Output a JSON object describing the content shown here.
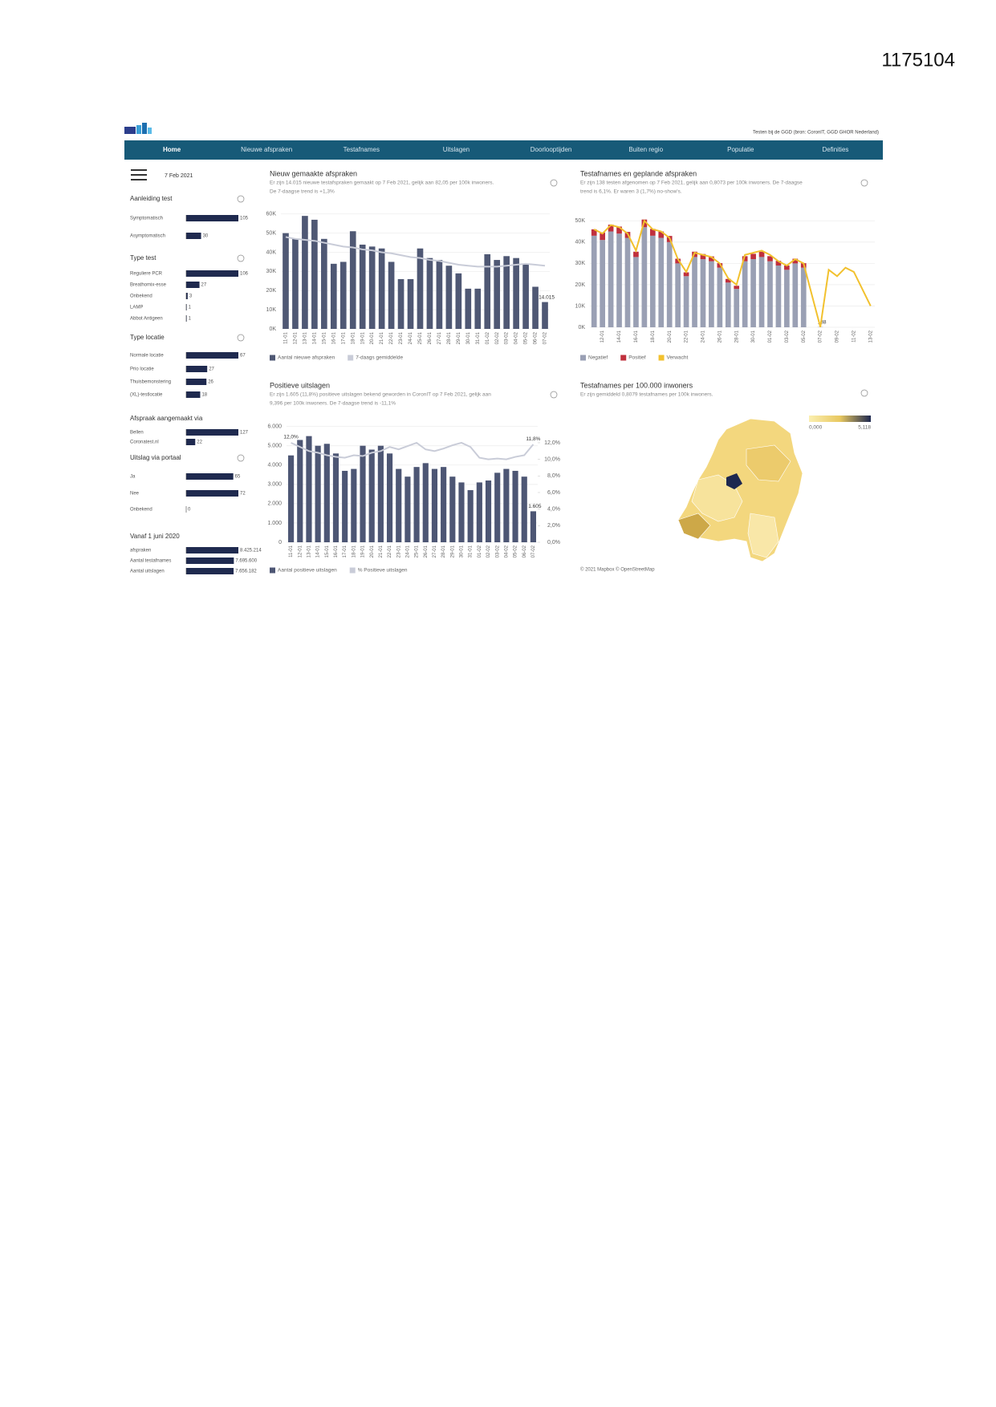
{
  "doc_id": "1175104",
  "header": {
    "source": "Testen bij de GGD (bron: CoronIT, GGD GHOR Nederland)"
  },
  "nav": [
    "Home",
    "Nieuwe afspraken",
    "Testafnames",
    "Uitslagen",
    "Doorlooptijden",
    "Buiten regio",
    "Populatie",
    "Definities"
  ],
  "sidebar": {
    "date": "7 Feb 2021",
    "groups": [
      {
        "title": "Aanleiding test",
        "items": [
          {
            "label": "Symptomatisch",
            "value": 105
          },
          {
            "label": "Asymptomatisch",
            "value": 30
          }
        ]
      },
      {
        "title": "Type test",
        "items": [
          {
            "label": "Reguliere PCR",
            "value": 106
          },
          {
            "label": "Breathomix-esse",
            "value": 27
          },
          {
            "label": "Onbekend",
            "value": 3
          },
          {
            "label": "LAMP",
            "value": 1
          },
          {
            "label": "Abbot Antigeen",
            "value": 1
          }
        ]
      },
      {
        "title": "Type locatie",
        "items": [
          {
            "label": "Normale locatie",
            "value": 67
          },
          {
            "label": "Prio locatie",
            "value": 27
          },
          {
            "label": "Thuisbemonstering",
            "value": 26
          },
          {
            "label": "(XL)-testlocatie",
            "value": 18
          }
        ]
      },
      {
        "title": "Afspraak aangemaakt via",
        "items": [
          {
            "label": "Bellen",
            "value": 127
          },
          {
            "label": "Coronatest.nl",
            "value": 22
          }
        ]
      },
      {
        "title": "Uitslag via portaal",
        "items": [
          {
            "label": "Ja",
            "value": 65
          },
          {
            "label": "Nee",
            "value": 72
          },
          {
            "label": "Onbekend",
            "value": 0
          }
        ]
      },
      {
        "title": "Vanaf 1 juni 2020",
        "items": [
          {
            "label": "afspraken",
            "value": 8425214,
            "value_label": "8.425.214"
          },
          {
            "label": "Aantal testafnames",
            "value": 7695600,
            "value_label": "7.695.600"
          },
          {
            "label": "Aantal uitslagen",
            "value": 7656182,
            "value_label": "7.656.182"
          }
        ]
      }
    ]
  },
  "chart_data": [
    {
      "type": "bar",
      "title": "Nieuw gemaakte afspraken",
      "subtitle": [
        "Er zijn 14.015 nieuwe testafspraken gemaakt op 7 Feb 2021, gelijk aan 82,05 per 100k inwoners.",
        "De 7-daagse trend is +1,3%"
      ],
      "categories": [
        "11-01",
        "12-01",
        "13-01",
        "14-01",
        "15-01",
        "16-01",
        "17-01",
        "18-01",
        "19-01",
        "20-01",
        "21-01",
        "22-01",
        "23-01",
        "24-01",
        "25-01",
        "26-01",
        "27-01",
        "28-01",
        "29-01",
        "30-01",
        "31-01",
        "01-02",
        "02-02",
        "03-02",
        "04-02",
        "05-02",
        "06-02",
        "07-02"
      ],
      "series": [
        {
          "name": "Aantal nieuwe afspraken",
          "type": "bar",
          "color": "#4f5874",
          "values": [
            50000,
            47000,
            59000,
            57000,
            47000,
            34000,
            35000,
            51000,
            44000,
            43000,
            42000,
            35000,
            26000,
            26000,
            42000,
            37000,
            36000,
            33000,
            29000,
            21000,
            21000,
            39000,
            36000,
            38000,
            37000,
            34000,
            22000,
            14015
          ],
          "value_labels": [
            null,
            null,
            null,
            null,
            null,
            null,
            null,
            null,
            null,
            null,
            null,
            null,
            null,
            null,
            null,
            null,
            null,
            null,
            null,
            null,
            null,
            null,
            null,
            null,
            null,
            null,
            null,
            "14.015"
          ]
        },
        {
          "name": "7-daags gemiddelde",
          "type": "line",
          "color": "#c9ccd8",
          "values": [
            48000,
            47000,
            46500,
            46000,
            45000,
            44000,
            43000,
            42500,
            41500,
            41000,
            40000,
            39500,
            38500,
            37500,
            37000,
            36000,
            35500,
            34500,
            33500,
            33000,
            32500,
            32500,
            32500,
            33000,
            33500,
            34000,
            33500,
            33000
          ]
        }
      ],
      "ylim": [
        0,
        62000
      ],
      "yticks": [
        {
          "value": 0,
          "label": "0K"
        },
        {
          "value": 10000,
          "label": "10K"
        },
        {
          "value": 20000,
          "label": "20K"
        },
        {
          "value": 30000,
          "label": "30K"
        },
        {
          "value": 40000,
          "label": "40K"
        },
        {
          "value": 50000,
          "label": "50K"
        },
        {
          "value": 60000,
          "label": "60K"
        }
      ],
      "grid": true
    },
    {
      "type": "bar",
      "title": "Testafnames en geplande afspraken",
      "subtitle": [
        "Er zijn 138 testen afgenomen op 7 Feb 2021, gelijk aan 0,8073 per 100k inwoners. De 7-daagse",
        "trend is 6,1%. Er waren 3 (1,7%) no-show's."
      ],
      "categories": [
        null,
        "12-01",
        null,
        "14-01",
        null,
        "16-01",
        null,
        "18-01",
        null,
        "20-01",
        null,
        "22-01",
        null,
        "24-01",
        null,
        "26-01",
        null,
        "28-01",
        null,
        "30-01",
        null,
        "01-02",
        null,
        "03-02",
        null,
        "05-02",
        null,
        "07-02",
        null,
        "09-02",
        null,
        "11-02",
        null,
        "13-02"
      ],
      "series": [
        {
          "name": "Negatief",
          "type": "bar",
          "color": "#9aa0b4",
          "values": [
            43000,
            41000,
            45000,
            44000,
            42000,
            33000,
            47000,
            43000,
            42000,
            40000,
            30000,
            24000,
            33000,
            32000,
            31000,
            28000,
            21000,
            18000,
            31000,
            32000,
            33000,
            31000,
            29000,
            27000,
            30000,
            28000,
            null,
            138,
            null,
            null,
            null,
            null,
            null,
            null
          ],
          "value_labels": [
            null,
            null,
            null,
            null,
            null,
            null,
            null,
            null,
            null,
            null,
            null,
            null,
            null,
            null,
            null,
            null,
            null,
            null,
            null,
            null,
            null,
            null,
            null,
            null,
            null,
            null,
            null,
            "138",
            null,
            null,
            null,
            null,
            null,
            null
          ]
        },
        {
          "name": "Positief",
          "type": "bar",
          "color": "#c0303d",
          "values": [
            3000,
            3500,
            3200,
            3300,
            2800,
            2500,
            3600,
            3200,
            3000,
            2900,
            2200,
            1800,
            2500,
            2400,
            2300,
            2100,
            1700,
            1500,
            2400,
            2500,
            2500,
            2400,
            2200,
            2000,
            2200,
            2100,
            null,
            null,
            null,
            null,
            null,
            null,
            null,
            null
          ]
        },
        {
          "name": "Verwacht",
          "type": "line",
          "color": "#f2c12e",
          "values": [
            46000,
            44000,
            48000,
            47000,
            44000,
            36000,
            50000,
            46000,
            45000,
            42000,
            32000,
            26000,
            35000,
            34000,
            33000,
            30000,
            23000,
            20000,
            34000,
            35000,
            36000,
            34000,
            31000,
            29000,
            32000,
            30000,
            15000,
            138,
            27000,
            24000,
            28000,
            26000,
            18000,
            10000
          ]
        }
      ],
      "ylim": [
        0,
        55000
      ],
      "yticks": [
        {
          "value": 0,
          "label": "0K"
        },
        {
          "value": 10000,
          "label": "10K"
        },
        {
          "value": 20000,
          "label": "20K"
        },
        {
          "value": 30000,
          "label": "30K"
        },
        {
          "value": 40000,
          "label": "40K"
        },
        {
          "value": 50000,
          "label": "50K"
        }
      ],
      "grid": true
    },
    {
      "type": "bar",
      "title": "Positieve uitslagen",
      "subtitle": [
        "Er zijn 1.605 (11,8%) positieve uitslagen bekend geworden in CoronIT op 7 Feb 2021, gelijk aan",
        "9,396 per 100k inwoners. De 7-daagse trend is -11,1%"
      ],
      "categories": [
        "11-01",
        "12-01",
        "13-01",
        "14-01",
        "15-01",
        "16-01",
        "17-01",
        "18-01",
        "19-01",
        "20-01",
        "21-01",
        "22-01",
        "23-01",
        "24-01",
        "25-01",
        "26-01",
        "27-01",
        "28-01",
        "29-01",
        "30-01",
        "31-01",
        "01-02",
        "02-02",
        "03-02",
        "04-02",
        "05-02",
        "06-02",
        "07-02"
      ],
      "series": [
        {
          "name": "Aantal positieve uitslagen",
          "type": "bar",
          "color": "#4d5674",
          "values": [
            4500,
            5300,
            5500,
            5000,
            5100,
            4600,
            3700,
            3800,
            5000,
            4800,
            5000,
            4600,
            3800,
            3400,
            3900,
            4100,
            3800,
            3900,
            3400,
            3100,
            2700,
            3100,
            3200,
            3600,
            3800,
            3700,
            3400,
            1605
          ],
          "value_labels": [
            null,
            null,
            null,
            null,
            null,
            null,
            null,
            null,
            null,
            null,
            null,
            null,
            null,
            null,
            null,
            null,
            null,
            null,
            null,
            null,
            null,
            null,
            null,
            null,
            null,
            null,
            null,
            "1.605"
          ]
        },
        {
          "name": "% Positieve uitslagen",
          "type": "line",
          "color": "#c9ccd8",
          "axis": "y2",
          "values": [
            12.0,
            11.5,
            11.0,
            10.8,
            10.5,
            10.3,
            10.2,
            10.5,
            10.4,
            10.8,
            11.0,
            11.5,
            11.2,
            11.6,
            12.0,
            11.2,
            11.0,
            11.3,
            11.7,
            12.0,
            11.5,
            10.2,
            10.0,
            10.1,
            10.0,
            10.3,
            10.5,
            11.8
          ],
          "value_labels": [
            "12,0%",
            null,
            null,
            null,
            null,
            null,
            null,
            null,
            null,
            null,
            null,
            null,
            null,
            null,
            null,
            null,
            null,
            null,
            null,
            null,
            null,
            null,
            null,
            null,
            null,
            null,
            null,
            "11,8%"
          ]
        }
      ],
      "ylim": [
        0,
        6400
      ],
      "yticks": [
        0,
        {
          "value": 1000,
          "label": "1.000"
        },
        {
          "value": 2000,
          "label": "2.000"
        },
        {
          "value": 3000,
          "label": "3.000"
        },
        {
          "value": 4000,
          "label": "4.000"
        },
        {
          "value": 5000,
          "label": "5.000"
        },
        {
          "value": 6000,
          "label": "6.000"
        }
      ],
      "y2lim": [
        0,
        14.9
      ],
      "y2ticks": [
        {
          "value": 0,
          "label": "0,0%"
        },
        {
          "value": 2,
          "label": "2,0%"
        },
        {
          "value": 4,
          "label": "4,0%"
        },
        {
          "value": 6,
          "label": "6,0%"
        },
        {
          "value": 8,
          "label": "8,0%"
        },
        {
          "value": 10,
          "label": "10,0%"
        },
        {
          "value": 12,
          "label": "12,0%"
        }
      ],
      "grid": true
    }
  ],
  "map": {
    "title": "Testafnames per 100.000 inwoners",
    "subtitle": "Er zijn gemiddeld 0,8079 testafnames per 100k inwoners.",
    "scale": [
      {
        "value": 0,
        "label": "0,000"
      },
      {
        "value": 5.118,
        "label": "5,118"
      }
    ],
    "credit": "© 2021 Mapbox © OpenStreetMap"
  }
}
